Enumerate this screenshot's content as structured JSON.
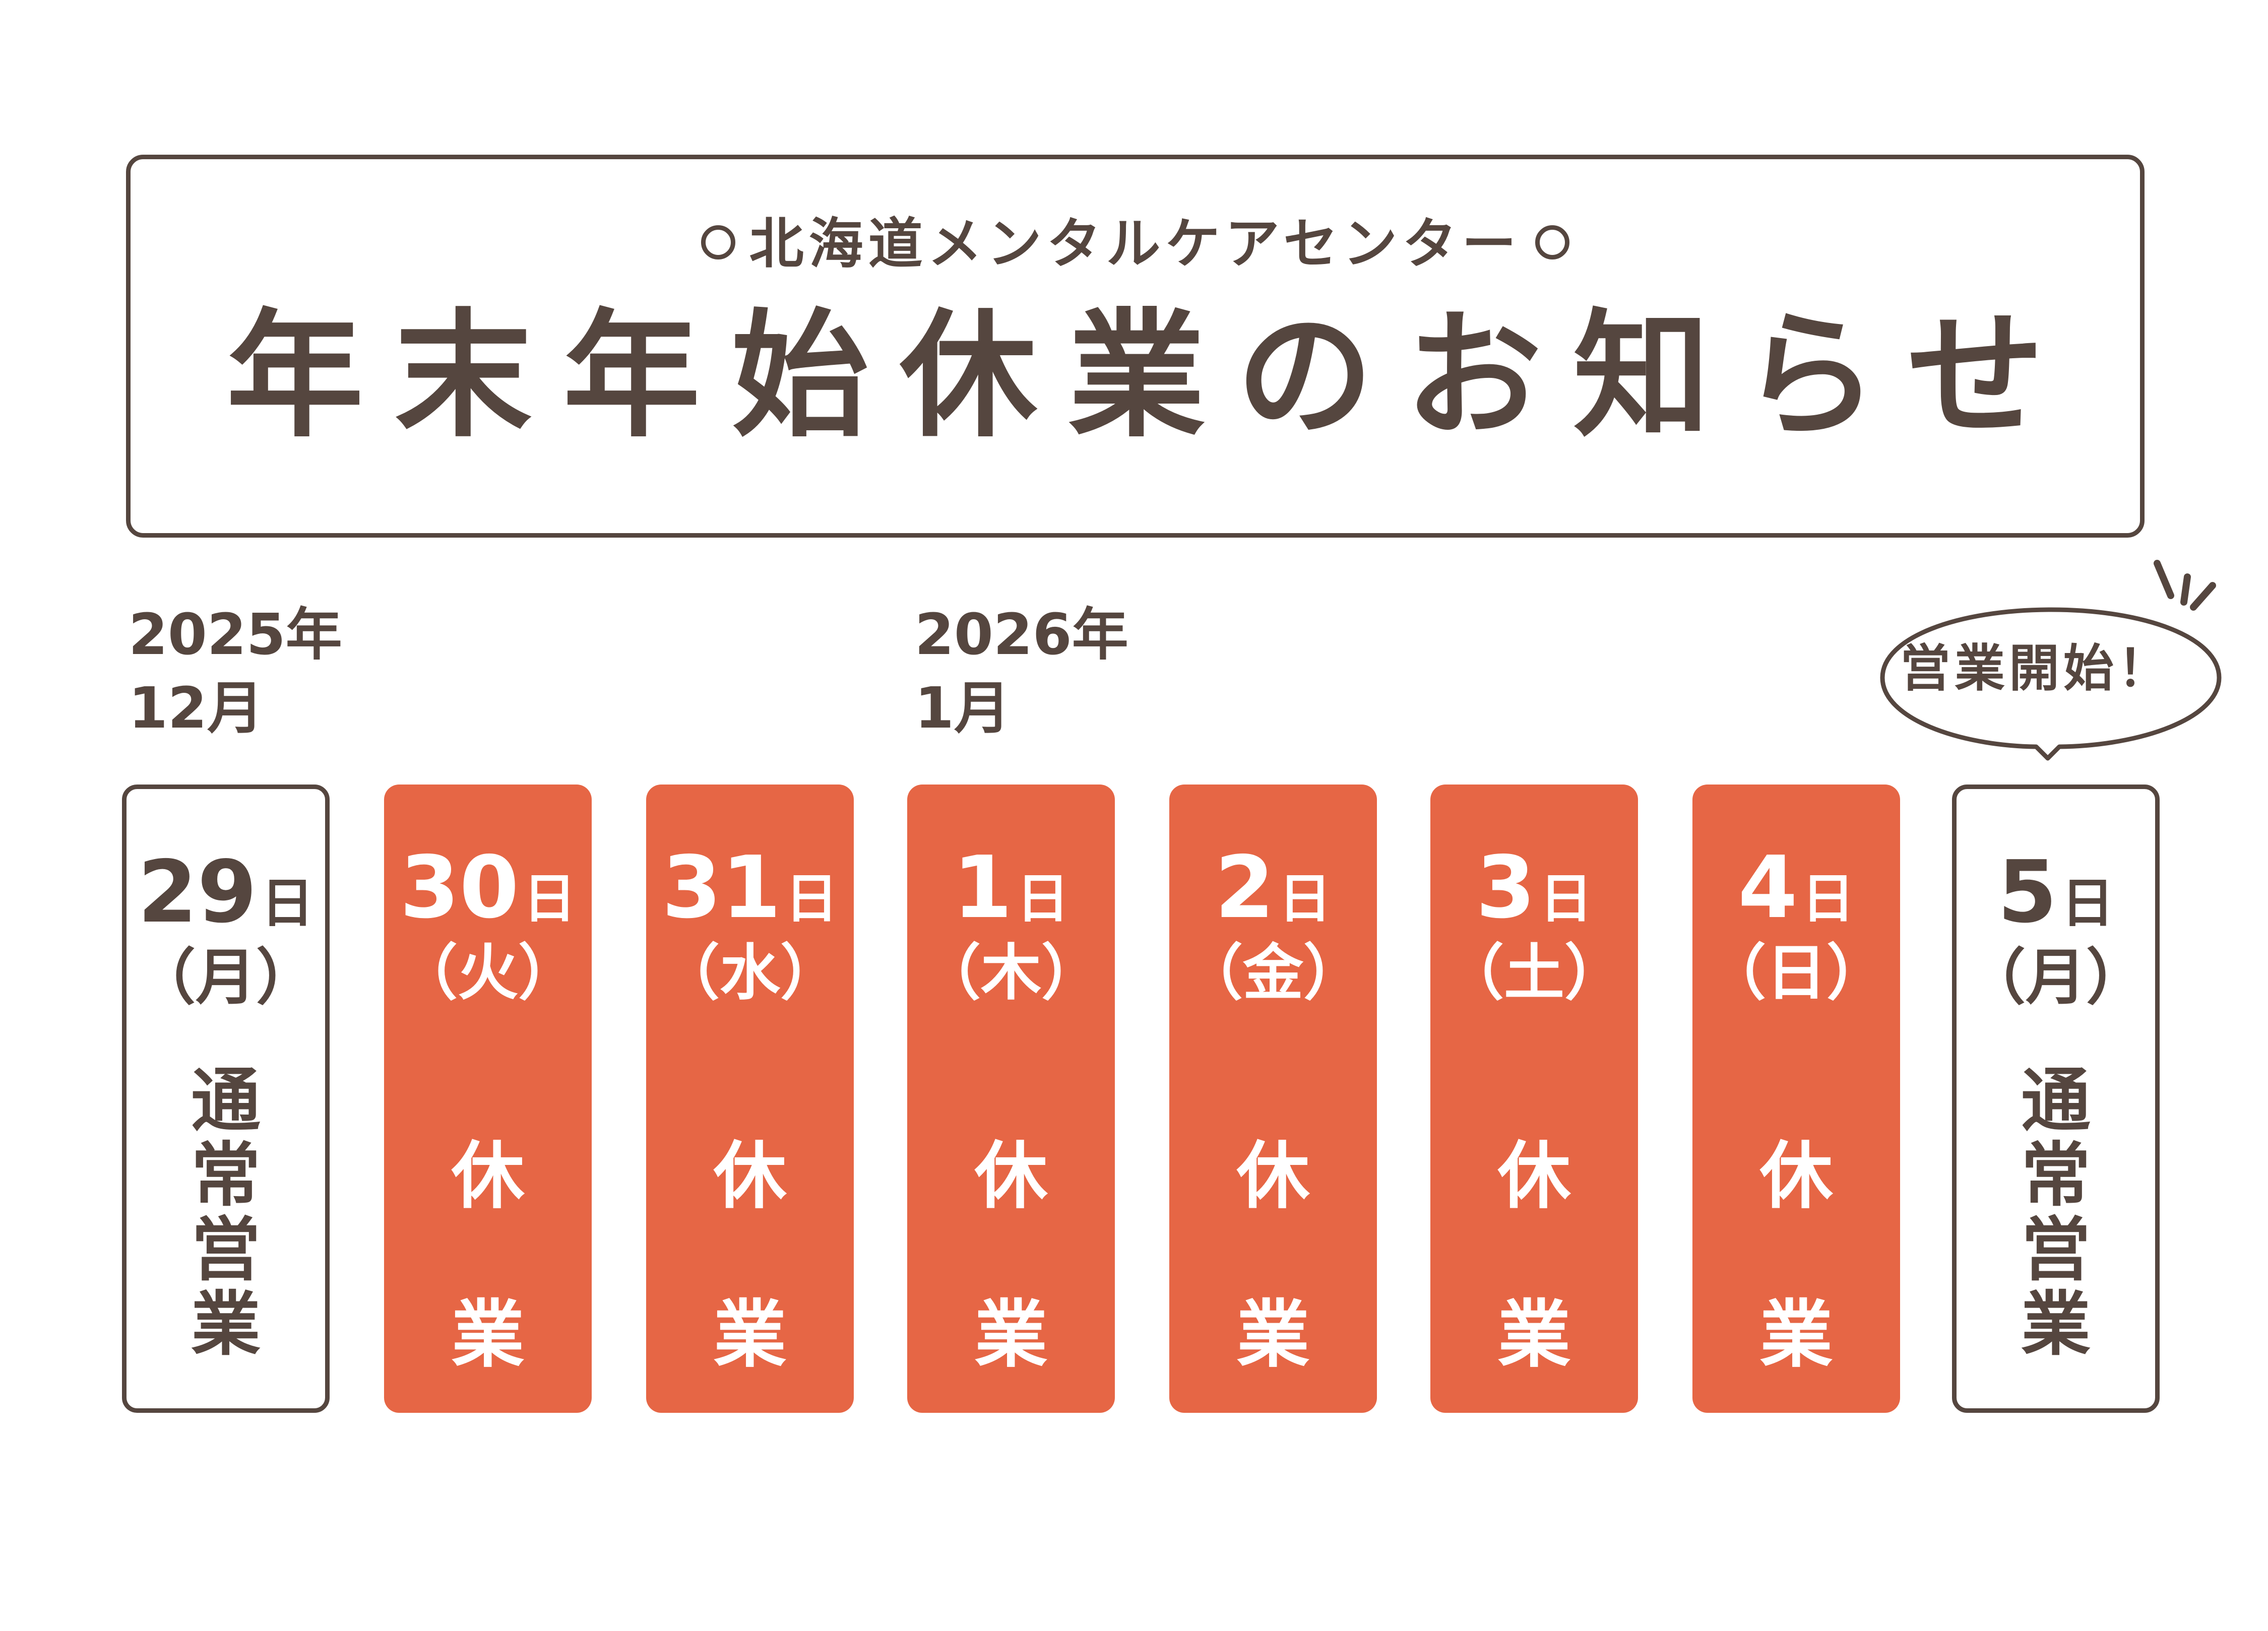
{
  "header": {
    "subtitle": "北海道メンタルケアセンター",
    "title": "年末年始休業のお知らせ"
  },
  "years": [
    {
      "label": "2025年\n12月"
    },
    {
      "label": "2026年\n1月"
    }
  ],
  "days": [
    {
      "day": "29",
      "unit": "日",
      "weekday": "（月）",
      "status": "通常営業",
      "type": "open"
    },
    {
      "day": "30",
      "unit": "日",
      "weekday": "（火）",
      "status": "休業",
      "type": "closed"
    },
    {
      "day": "31",
      "unit": "日",
      "weekday": "（水）",
      "status": "休業",
      "type": "closed"
    },
    {
      "day": "1",
      "unit": "日",
      "weekday": "（木）",
      "status": "休業",
      "type": "closed"
    },
    {
      "day": "2",
      "unit": "日",
      "weekday": "（金）",
      "status": "休業",
      "type": "closed"
    },
    {
      "day": "3",
      "unit": "日",
      "weekday": "（土）",
      "status": "休業",
      "type": "closed"
    },
    {
      "day": "4",
      "unit": "日",
      "weekday": "（日）",
      "status": "休業",
      "type": "closed"
    },
    {
      "day": "5",
      "unit": "日",
      "weekday": "（月）",
      "status": "通常営業",
      "type": "open"
    }
  ],
  "callout": {
    "text": "営業開始！"
  },
  "colors": {
    "text": "#55463f",
    "closed": "#e66645",
    "background": "#ffffff"
  }
}
